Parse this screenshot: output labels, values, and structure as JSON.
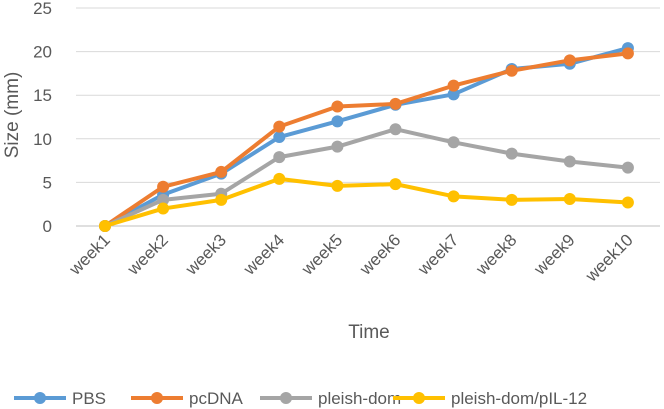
{
  "chart_data": {
    "type": "line",
    "title": "",
    "xlabel": "Time",
    "ylabel": "Size (mm)",
    "ylim": [
      0,
      25
    ],
    "yticks": [
      0,
      5,
      10,
      15,
      20,
      25
    ],
    "grid": true,
    "legend_position": "bottom",
    "categories": [
      "week1",
      "week2",
      "week3",
      "week4",
      "week5",
      "week6",
      "week7",
      "week8",
      "week9",
      "week10"
    ],
    "series": [
      {
        "name": "PBS",
        "color": "#5B9BD5",
        "values": [
          0,
          3.6,
          6.0,
          10.2,
          12.0,
          13.9,
          15.1,
          18.0,
          18.6,
          20.4
        ]
      },
      {
        "name": "pcDNA",
        "color": "#ED7D31",
        "values": [
          0,
          4.5,
          6.2,
          11.4,
          13.7,
          14.0,
          16.1,
          17.8,
          19.0,
          19.8
        ]
      },
      {
        "name": "pleish-dom",
        "color": "#A5A5A5",
        "values": [
          0,
          3.0,
          3.7,
          7.9,
          9.1,
          11.1,
          9.6,
          8.3,
          7.4,
          6.7
        ]
      },
      {
        "name": "pleish-dom/pIL-12",
        "color": "#FFC000",
        "values": [
          0,
          2.0,
          3.0,
          5.4,
          4.6,
          4.8,
          3.4,
          3.0,
          3.1,
          2.7
        ]
      }
    ]
  }
}
